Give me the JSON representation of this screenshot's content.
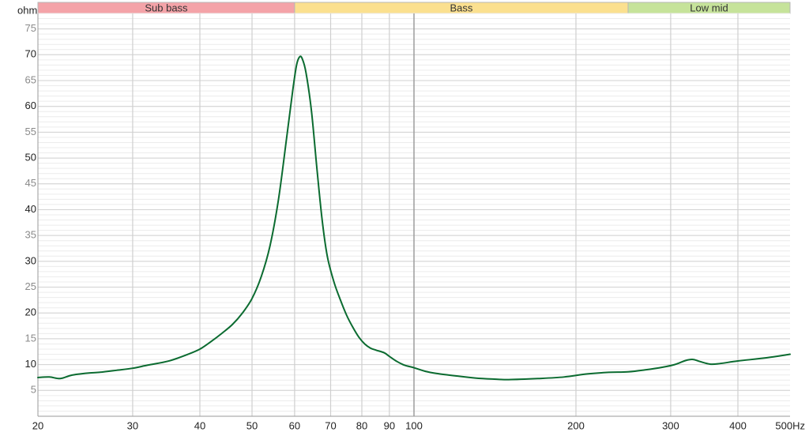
{
  "chart_data": {
    "type": "line",
    "title": "",
    "xlabel": "Hz",
    "ylabel": "ohm",
    "x_scale": "log",
    "xlim": [
      20,
      500
    ],
    "ylim": [
      0,
      78
    ],
    "x_ticks": [
      20,
      30,
      40,
      50,
      60,
      70,
      80,
      90,
      100,
      200,
      300,
      400,
      500
    ],
    "x_tick_labels": [
      "20",
      "30",
      "40",
      "50",
      "60",
      "70",
      "80",
      "90",
      "100",
      "200",
      "300",
      "400",
      "500Hz"
    ],
    "x_gridlines": [
      30,
      40,
      50,
      60,
      70,
      80,
      90,
      100,
      200,
      300,
      400
    ],
    "y_ticks": [
      5,
      10,
      15,
      20,
      25,
      30,
      35,
      40,
      45,
      50,
      55,
      60,
      65,
      70,
      75
    ],
    "y_ticks_emphasized": [
      10,
      20,
      30,
      40,
      50,
      60,
      70
    ],
    "y_minor_grid_step": 1,
    "grid": true,
    "bands": [
      {
        "label": "Sub bass",
        "from": 20,
        "to": 60,
        "color": "#f4a3a8"
      },
      {
        "label": "Bass",
        "from": 60,
        "to": 250,
        "color": "#fbe08f"
      },
      {
        "label": "Low mid",
        "from": 250,
        "to": 500,
        "color": "#c6e39a"
      }
    ],
    "series": [
      {
        "color": "#0b6b30",
        "points": [
          [
            20,
            7.5
          ],
          [
            21,
            7.6
          ],
          [
            22,
            7.3
          ],
          [
            23,
            7.9
          ],
          [
            24,
            8.2
          ],
          [
            25,
            8.4
          ],
          [
            26,
            8.5
          ],
          [
            28,
            8.9
          ],
          [
            30,
            9.3
          ],
          [
            32,
            9.9
          ],
          [
            35,
            10.7
          ],
          [
            38,
            12.0
          ],
          [
            40,
            13.0
          ],
          [
            42,
            14.5
          ],
          [
            44,
            16.1
          ],
          [
            46,
            17.8
          ],
          [
            48,
            20.0
          ],
          [
            50,
            22.8
          ],
          [
            52,
            27.0
          ],
          [
            54,
            33.0
          ],
          [
            56,
            42.0
          ],
          [
            58,
            54.0
          ],
          [
            59.5,
            63.0
          ],
          [
            60.5,
            68.0
          ],
          [
            61.3,
            69.6
          ],
          [
            62,
            69.2
          ],
          [
            63,
            66.5
          ],
          [
            64.5,
            59.0
          ],
          [
            66,
            48.0
          ],
          [
            67.5,
            38.0
          ],
          [
            69,
            31.0
          ],
          [
            71,
            26.0
          ],
          [
            73,
            22.5
          ],
          [
            75,
            19.5
          ],
          [
            77,
            17.2
          ],
          [
            79,
            15.3
          ],
          [
            81,
            14.0
          ],
          [
            83,
            13.2
          ],
          [
            85,
            12.8
          ],
          [
            88,
            12.3
          ],
          [
            90,
            11.6
          ],
          [
            93,
            10.6
          ],
          [
            96,
            9.9
          ],
          [
            100,
            9.4
          ],
          [
            105,
            8.7
          ],
          [
            110,
            8.3
          ],
          [
            120,
            7.8
          ],
          [
            130,
            7.4
          ],
          [
            140,
            7.2
          ],
          [
            150,
            7.1
          ],
          [
            170,
            7.3
          ],
          [
            190,
            7.6
          ],
          [
            210,
            8.2
          ],
          [
            230,
            8.5
          ],
          [
            250,
            8.6
          ],
          [
            270,
            9.0
          ],
          [
            290,
            9.5
          ],
          [
            305,
            10.0
          ],
          [
            320,
            10.8
          ],
          [
            330,
            11.0
          ],
          [
            340,
            10.6
          ],
          [
            355,
            10.1
          ],
          [
            370,
            10.2
          ],
          [
            400,
            10.7
          ],
          [
            450,
            11.3
          ],
          [
            500,
            12.0
          ]
        ]
      }
    ]
  }
}
